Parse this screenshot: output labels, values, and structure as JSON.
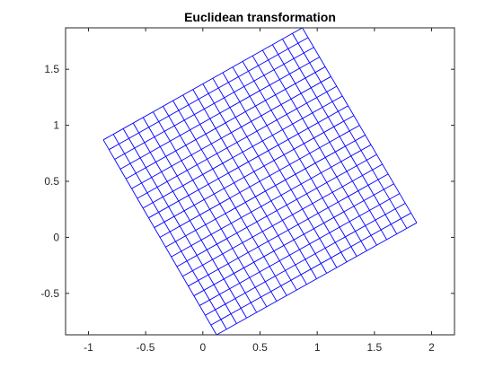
{
  "chart_data": {
    "type": "line",
    "title": "Euclidean transformation",
    "xlabel": "",
    "ylabel": "",
    "xlim": [
      -1.2,
      2.2
    ],
    "ylim": [
      -0.87,
      1.87
    ],
    "xticks": [
      -1,
      -0.5,
      0,
      0.5,
      1,
      1.5,
      2
    ],
    "xtick_labels": [
      "-1",
      "-0.5",
      "0",
      "0.5",
      "1",
      "1.5",
      "2"
    ],
    "yticks": [
      -0.5,
      0,
      0.5,
      1,
      1.5
    ],
    "ytick_labels": [
      "-0.5",
      "0",
      "0.5",
      "1",
      "1.5"
    ],
    "grid": false,
    "box": true,
    "series": [
      {
        "color": "#0000ff",
        "kind": "rotated-grid",
        "divisions": 20,
        "corners": [
          [
            0.12,
            -0.87
          ],
          [
            1.87,
            0.13
          ],
          [
            0.87,
            1.87
          ],
          [
            -0.87,
            0.87
          ]
        ]
      }
    ]
  },
  "colors": {
    "axis": "#262626",
    "grid_lines": "#0000ff",
    "background": "#ffffff"
  }
}
